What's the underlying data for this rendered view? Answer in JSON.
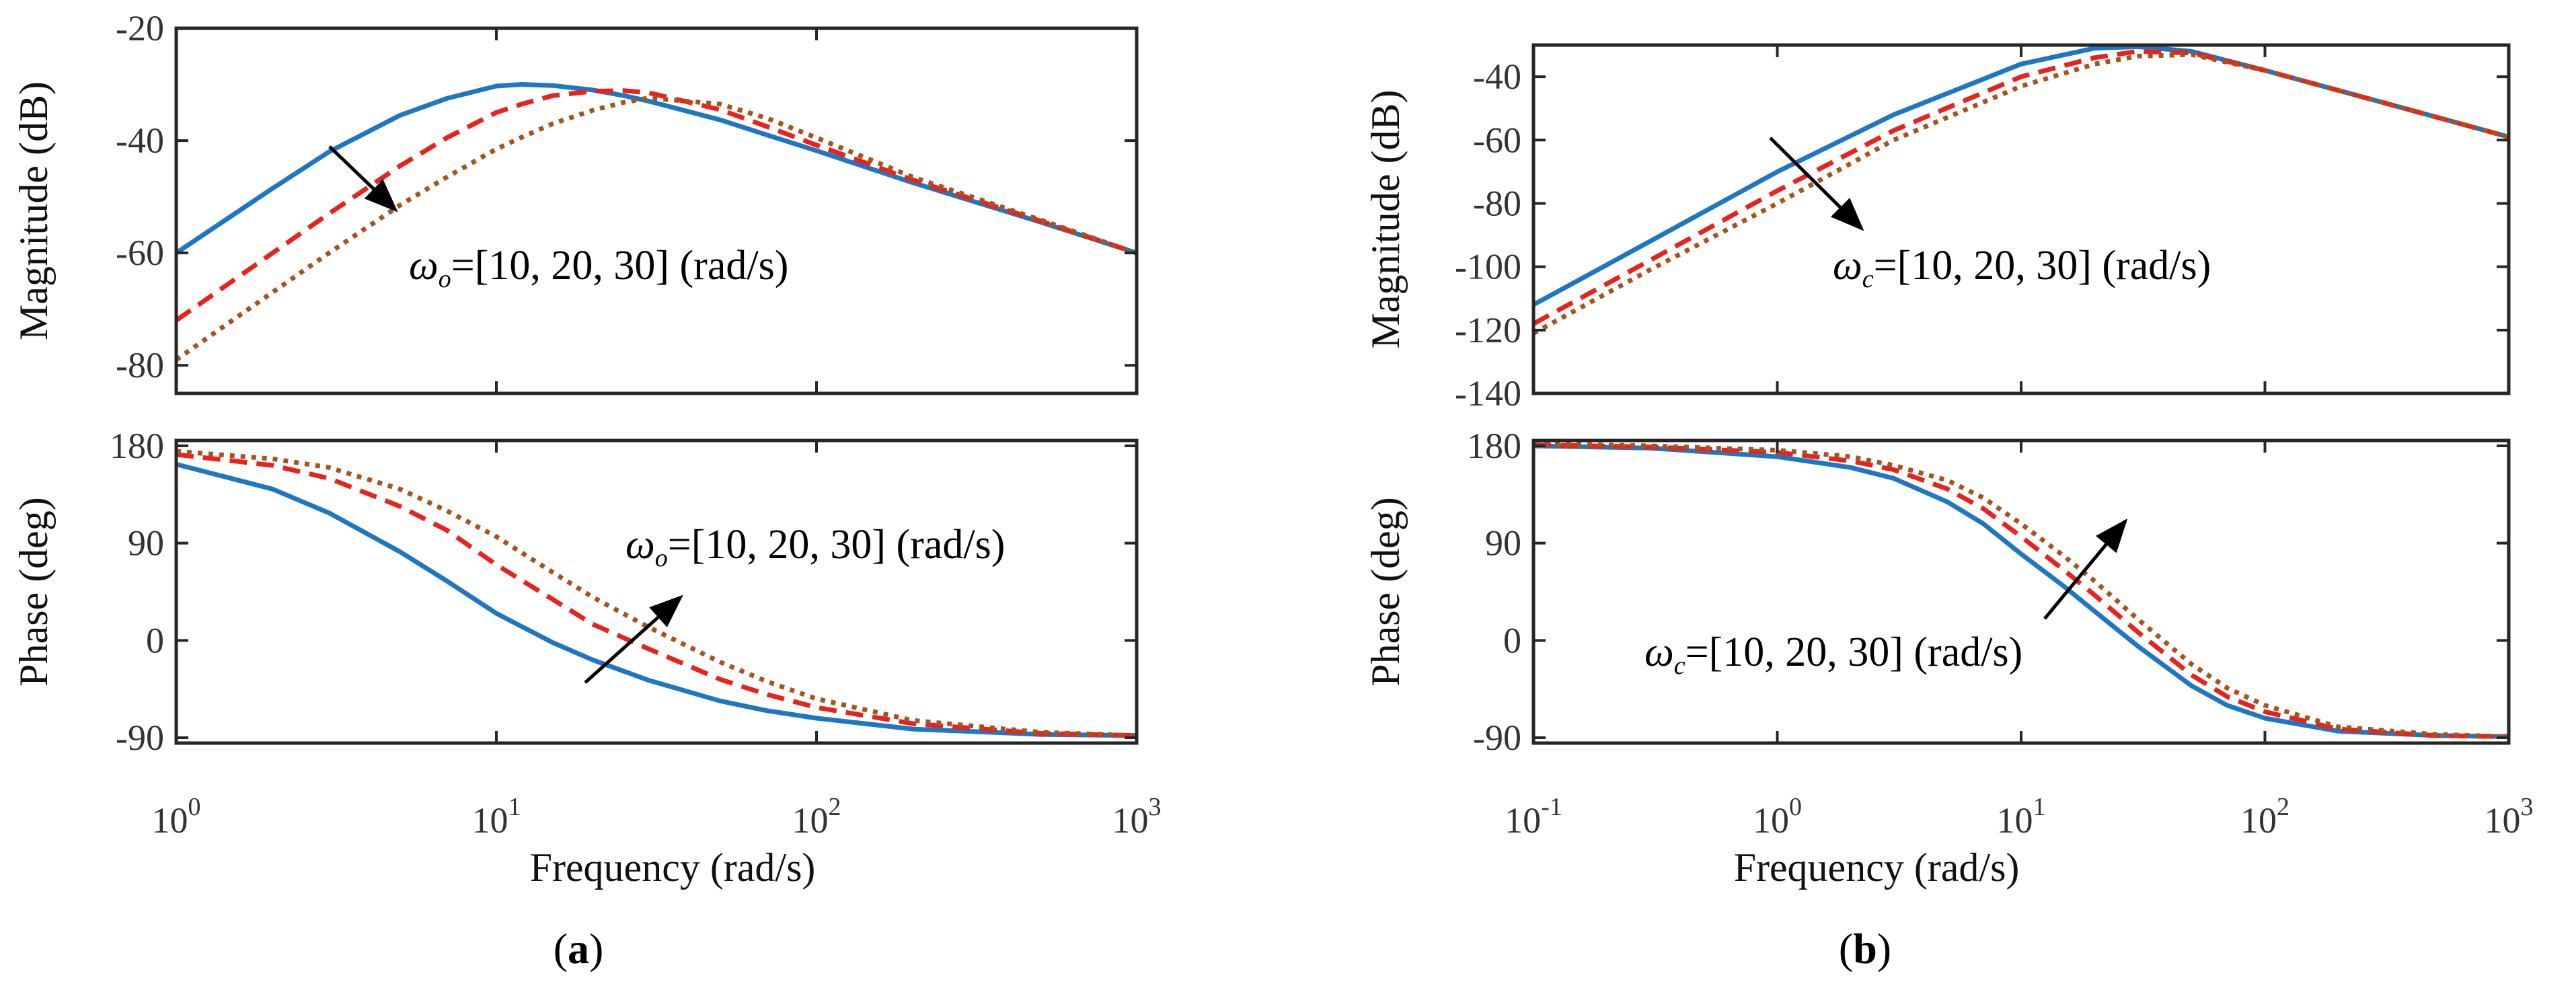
{
  "chart_data": [
    {
      "type": "line",
      "panel_label": "a",
      "xlabel": "Frequency  (rad/s)",
      "x_scale": "log",
      "xlim": [
        1,
        1000
      ],
      "x_ticks": [
        {
          "base": "10",
          "exp": "0"
        },
        {
          "base": "10",
          "exp": "1"
        },
        {
          "base": "10",
          "exp": "2"
        },
        {
          "base": "10",
          "exp": "3"
        }
      ],
      "legend": "none",
      "series_names": [
        "ω_o = 10",
        "ω_o = 20",
        "ω_o = 30"
      ],
      "series_colors": [
        "#1f77c4",
        "#e8231d",
        "#a5541e"
      ],
      "series_styles": [
        "solid",
        "dashed",
        "dotted"
      ],
      "subplots": [
        {
          "name": "magnitude",
          "ylabel": "Magnitude (dB)",
          "ylim": [
            -85,
            -20
          ],
          "yticks": [
            "-20",
            "-40",
            "-60",
            "-80"
          ],
          "x": [
            1,
            2,
            3,
            5,
            7,
            10,
            12,
            15,
            20,
            25,
            30,
            50,
            70,
            100,
            200,
            500,
            1000
          ],
          "series": [
            {
              "name": "ω_o = 10",
              "values": [
                -60,
                -48.5,
                -42,
                -35.5,
                -32.5,
                -30.3,
                -30,
                -30.2,
                -31,
                -32,
                -33,
                -36.3,
                -39,
                -41.8,
                -47.5,
                -54.5,
                -60
              ]
            },
            {
              "name": "ω_o = 20",
              "values": [
                -72,
                -60,
                -53,
                -44.5,
                -39.5,
                -35,
                -33.5,
                -32,
                -31.2,
                -31.1,
                -31.5,
                -34.5,
                -37.5,
                -40.8,
                -47,
                -54.3,
                -60
              ]
            },
            {
              "name": "ω_o = 30",
              "values": [
                -79,
                -67,
                -60,
                -51.5,
                -46.5,
                -41.5,
                -39.4,
                -37,
                -34.6,
                -33.2,
                -32.4,
                -33.5,
                -36,
                -39.5,
                -46.5,
                -54.1,
                -60
              ]
            }
          ],
          "annotation": {
            "prefix": "ω",
            "subscript": "o",
            "text": "=[10, 20, 30] (rad/s)"
          }
        },
        {
          "name": "phase",
          "ylabel": "Phase (deg)",
          "ylim": [
            -95,
            185
          ],
          "yticks": [
            "180",
            "90",
            "0",
            "-90"
          ],
          "x": [
            1,
            2,
            3,
            5,
            7,
            10,
            15,
            20,
            30,
            50,
            70,
            100,
            200,
            500,
            1000
          ],
          "series": [
            {
              "name": "ω_o = 10",
              "values": [
                163,
                140,
                118,
                82,
                55,
                25,
                -2,
                -18,
                -37,
                -56,
                -65,
                -72,
                -82,
                -87,
                -88
              ]
            },
            {
              "name": "ω_o = 20",
              "values": [
                172,
                162,
                150,
                124,
                102,
                70,
                38,
                15,
                -8,
                -36,
                -50,
                -62,
                -77,
                -86,
                -88
              ]
            },
            {
              "name": "ω_o = 30",
              "values": [
                175,
                168,
                160,
                140,
                120,
                96,
                63,
                40,
                12,
                -20,
                -38,
                -54,
                -74,
                -85,
                -88
              ]
            }
          ],
          "annotation": {
            "prefix": "ω",
            "subscript": "o",
            "text": "=[10, 20, 30] (rad/s)"
          }
        }
      ]
    },
    {
      "type": "line",
      "panel_label": "b",
      "xlabel": "Frequency  (rad/s)",
      "x_scale": "log",
      "xlim": [
        0.1,
        1000
      ],
      "x_ticks": [
        {
          "base": "10",
          "exp": "-1"
        },
        {
          "base": "10",
          "exp": "0"
        },
        {
          "base": "10",
          "exp": "1"
        },
        {
          "base": "10",
          "exp": "2"
        },
        {
          "base": "10",
          "exp": "3"
        }
      ],
      "legend": "none",
      "series_names": [
        "ω_c = 10",
        "ω_c = 20",
        "ω_c = 30"
      ],
      "series_colors": [
        "#1f77c4",
        "#e8231d",
        "#a5541e"
      ],
      "series_styles": [
        "solid",
        "dashed",
        "dotted"
      ],
      "subplots": [
        {
          "name": "magnitude",
          "ylabel": "Magnitude (dB)",
          "ylim": [
            -140,
            -30
          ],
          "yticks": [
            "-40",
            "-60",
            "-80",
            "-100",
            "-120",
            "-140"
          ],
          "x": [
            0.1,
            0.3,
            1,
            3,
            10,
            20,
            30,
            50,
            100,
            300,
            1000
          ],
          "series": [
            {
              "name": "ω_c = 10",
              "values": [
                -112,
                -92,
                -70,
                -52,
                -36,
                -31,
                -30.5,
                -32,
                -38,
                -48,
                -59
              ]
            },
            {
              "name": "ω_c = 20",
              "values": [
                -118,
                -98,
                -76,
                -57,
                -40,
                -34,
                -32,
                -32.5,
                -38,
                -48,
                -59
              ]
            },
            {
              "name": "ω_c = 30",
              "values": [
                -121,
                -101,
                -80,
                -60,
                -43,
                -36,
                -33.5,
                -33,
                -38,
                -48,
                -59
              ]
            }
          ],
          "annotation": {
            "prefix": "ω",
            "subscript": "c",
            "text": "=[10, 20, 30] (rad/s)"
          }
        },
        {
          "name": "phase",
          "ylabel": "Phase (deg)",
          "ylim": [
            -95,
            185
          ],
          "yticks": [
            "180",
            "90",
            "0",
            "-90"
          ],
          "x": [
            0.1,
            0.3,
            1,
            2,
            3,
            5,
            7,
            10,
            15,
            20,
            30,
            50,
            70,
            100,
            200,
            500,
            1000
          ],
          "series": [
            {
              "name": "ω_c = 10",
              "values": [
                180,
                178,
                170,
                160,
                150,
                128,
                108,
                80,
                50,
                27,
                -5,
                -42,
                -60,
                -72,
                -84,
                -88,
                -89
              ]
            },
            {
              "name": "ω_c = 20",
              "values": [
                181,
                179,
                174,
                166,
                158,
                140,
                122,
                96,
                65,
                42,
                8,
                -32,
                -52,
                -66,
                -82,
                -88,
                -89
              ]
            },
            {
              "name": "ω_c = 30",
              "values": [
                182,
                180,
                176,
                170,
                162,
                148,
                132,
                108,
                78,
                55,
                20,
                -22,
                -44,
                -60,
                -80,
                -87,
                -89
              ]
            }
          ],
          "annotation": {
            "prefix": "ω",
            "subscript": "c",
            "text": "=[10, 20, 30] (rad/s)"
          }
        }
      ]
    }
  ]
}
